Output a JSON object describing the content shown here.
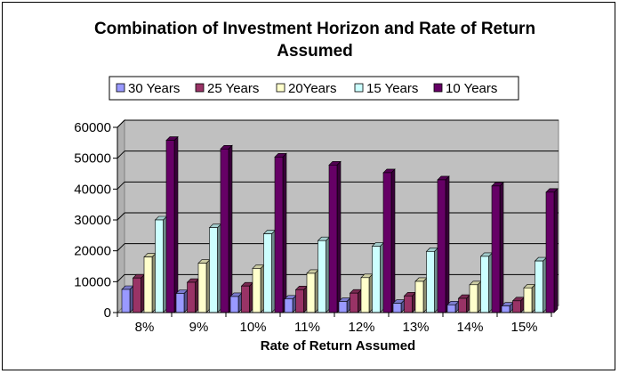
{
  "chart_data": {
    "type": "bar",
    "title_lines": [
      "Combination of Investment Horizon and Rate of Return",
      "Assumed"
    ],
    "xlabel": "Rate of Return Assumed",
    "ylabel": "",
    "ylim": [
      0,
      60000
    ],
    "yticks": [
      "0",
      "10000",
      "20000",
      "30000",
      "40000",
      "50000",
      "60000"
    ],
    "grid": true,
    "legend_position": "top",
    "categories": [
      "8%",
      "9%",
      "10%",
      "11%",
      "12%",
      "13%",
      "14%",
      "15%"
    ],
    "series": [
      {
        "name": "30 Years",
        "color": "#9999ff",
        "values": [
          7500,
          6200,
          5200,
          4400,
          3600,
          3000,
          2500,
          2100
        ]
      },
      {
        "name": "25 Years",
        "color": "#993366",
        "values": [
          11200,
          9800,
          8600,
          7400,
          6300,
          5400,
          4600,
          3800
        ]
      },
      {
        "name": "20Years",
        "color": "#ffffcc",
        "values": [
          18000,
          16000,
          14300,
          12700,
          11300,
          10100,
          9000,
          8000
        ]
      },
      {
        "name": "15 Years",
        "color": "#ccffff",
        "values": [
          30000,
          27500,
          25500,
          23300,
          21500,
          19800,
          18200,
          16700
        ]
      },
      {
        "name": "10 Years",
        "color": "#660066",
        "values": [
          55800,
          53000,
          50400,
          47800,
          45300,
          43000,
          41000,
          39000
        ]
      }
    ]
  }
}
